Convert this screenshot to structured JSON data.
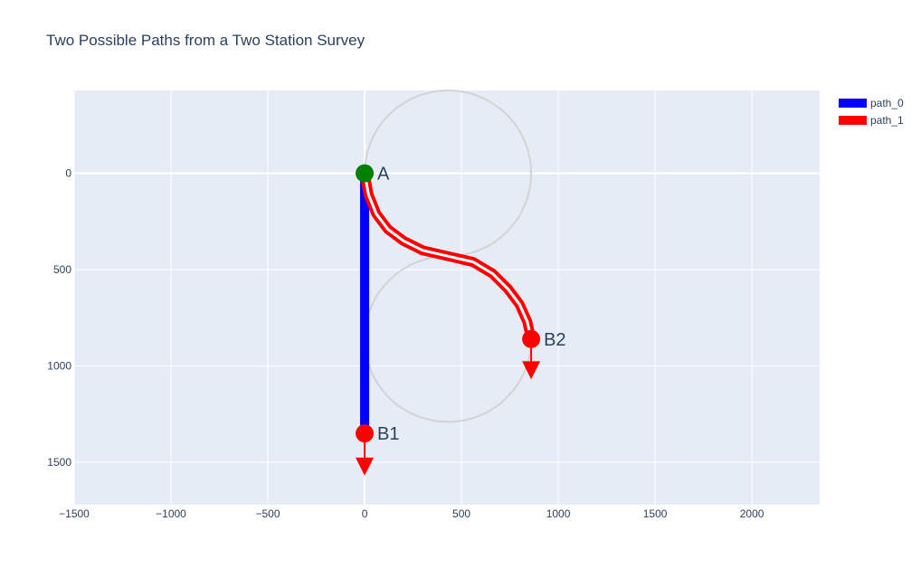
{
  "chart_data": {
    "type": "line",
    "title": "Two Possible Paths from a Two Station Survey",
    "xlabel": "",
    "ylabel": "",
    "xlim": [
      -1500,
      2350
    ],
    "ylim": [
      1720,
      -430
    ],
    "y_reversed": true,
    "grid": true,
    "legend_placement": "top-right",
    "x_ticks": [
      -1500,
      -1000,
      -500,
      0,
      500,
      1000,
      1500,
      2000
    ],
    "x_tick_labels": [
      "−1500",
      "−1000",
      "−500",
      "0",
      "500",
      "1000",
      "1500",
      "2000"
    ],
    "y_ticks": [
      0,
      500,
      1000,
      1500
    ],
    "y_tick_labels": [
      "0",
      "500",
      "1000",
      "1500"
    ],
    "series": [
      {
        "name": "path_0",
        "color": "#0000ff",
        "x": [
          0,
          0
        ],
        "y": [
          0,
          1350
        ]
      },
      {
        "name": "path_1",
        "color": "#ff0000",
        "x": [
          0,
          20,
          60,
          120,
          200,
          300,
          430,
          560,
          660,
          740,
          800,
          840,
          860
        ],
        "y": [
          0,
          110,
          210,
          290,
          350,
          400,
          430,
          460,
          520,
          600,
          680,
          770,
          860
        ]
      }
    ],
    "circles": [
      {
        "cx": 430,
        "cy": 0,
        "r": 430,
        "color": "#d3d3d3"
      },
      {
        "cx": 430,
        "cy": 860,
        "r": 430,
        "color": "#d3d3d3"
      }
    ],
    "points": [
      {
        "label": "A",
        "x": 0,
        "y": 0,
        "color": "#008000"
      },
      {
        "label": "B1",
        "x": 0,
        "y": 1350,
        "color": "#ff0000"
      },
      {
        "label": "B2",
        "x": 860,
        "y": 860,
        "color": "#ff0000"
      }
    ],
    "arrows": [
      {
        "x": 0,
        "y_from": 1350,
        "y_to": 1560,
        "color": "#ff0000"
      },
      {
        "x": 860,
        "y_from": 860,
        "y_to": 1060,
        "color": "#ff0000"
      }
    ],
    "colors": {
      "plot_bg": "#e5ecf6",
      "grid": "#ffffff",
      "text": "#2a3f5f"
    }
  }
}
